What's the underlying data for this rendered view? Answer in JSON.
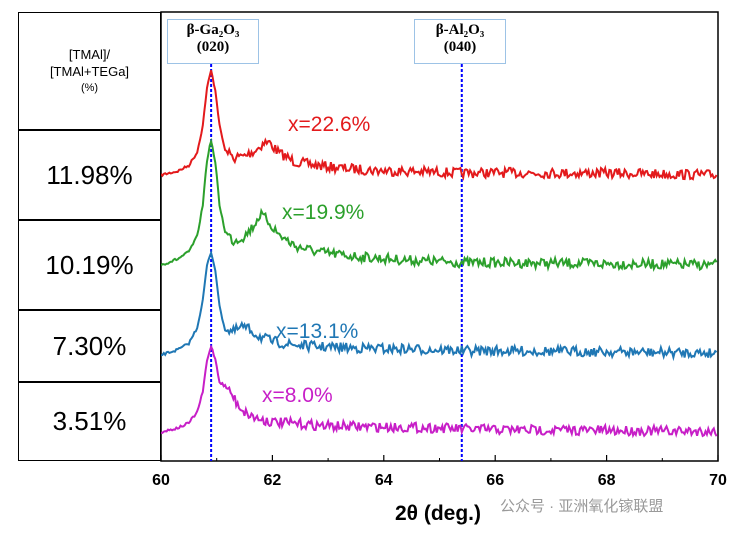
{
  "table": {
    "header": [
      "[TMAl]/",
      "[TMAl+TEGa]",
      "(%)"
    ],
    "rows": [
      "11.98%",
      "10.19%",
      "7.30%",
      "3.51%"
    ]
  },
  "peak_labels": [
    {
      "name": "β-Ga₂O₃",
      "hkl": "(020)",
      "x": 60.9
    },
    {
      "name": "β-Al₂O₃",
      "hkl": "(040)",
      "x": 65.4
    }
  ],
  "watermark_text": "公众号 · 亚洲氧化镓联盟",
  "chart_data": {
    "type": "line",
    "xlabel": "2θ (deg.)",
    "xlim": [
      60,
      70
    ],
    "xticks": [
      60,
      62,
      64,
      66,
      68,
      70
    ],
    "grid": false,
    "reference_lines": [
      60.9,
      65.4
    ],
    "series": [
      {
        "name": "x=22.6%",
        "color": "#e31a1c",
        "x": [
          60.0,
          60.3,
          60.5,
          60.65,
          60.75,
          60.82,
          60.9,
          60.98,
          61.05,
          61.15,
          61.3,
          61.5,
          61.7,
          61.85,
          61.95,
          62.1,
          62.4,
          62.8,
          63.3,
          63.8,
          64.3,
          65.0,
          65.4,
          66.0,
          67.0,
          68.0,
          69.0,
          70.0
        ],
        "y": [
          0.0,
          0.2,
          0.5,
          1.2,
          2.6,
          4.5,
          5.5,
          4.4,
          2.6,
          1.3,
          0.9,
          1.0,
          1.3,
          1.7,
          1.7,
          1.2,
          0.7,
          0.5,
          0.35,
          0.25,
          0.2,
          0.15,
          0.1,
          0.12,
          0.1,
          0.1,
          0.05,
          0.0
        ]
      },
      {
        "name": "x=19.9%",
        "color": "#2ca02c",
        "x": [
          60.0,
          60.3,
          60.5,
          60.65,
          60.75,
          60.82,
          60.9,
          60.98,
          61.05,
          61.15,
          61.3,
          61.5,
          61.65,
          61.78,
          61.9,
          62.1,
          62.4,
          62.8,
          63.3,
          63.8,
          64.3,
          65.0,
          65.4,
          66.0,
          67.0,
          68.0,
          69.0,
          70.0
        ],
        "y": [
          0.0,
          0.25,
          0.55,
          1.2,
          2.5,
          4.3,
          5.2,
          4.2,
          2.5,
          1.4,
          1.0,
          1.2,
          1.6,
          2.1,
          1.9,
          1.3,
          0.8,
          0.55,
          0.4,
          0.3,
          0.22,
          0.15,
          0.1,
          0.1,
          0.08,
          0.05,
          0.03,
          0.0
        ]
      },
      {
        "name": "x=13.1%",
        "color": "#1f77b4",
        "x": [
          60.0,
          60.3,
          60.5,
          60.65,
          60.75,
          60.82,
          60.9,
          60.98,
          61.05,
          61.15,
          61.3,
          61.45,
          61.6,
          61.75,
          62.0,
          62.3,
          62.8,
          63.3,
          64.0,
          65.0,
          65.4,
          66.0,
          67.0,
          68.0,
          69.0,
          70.0
        ],
        "y": [
          0.0,
          0.25,
          0.55,
          1.3,
          2.6,
          4.2,
          4.9,
          4.0,
          2.3,
          1.2,
          1.1,
          1.35,
          1.2,
          0.9,
          0.65,
          0.5,
          0.4,
          0.35,
          0.3,
          0.25,
          0.2,
          0.2,
          0.18,
          0.15,
          0.12,
          0.1
        ]
      },
      {
        "name": "x=8.0%",
        "color": "#c71fc7",
        "x": [
          60.0,
          60.3,
          60.5,
          60.65,
          60.75,
          60.82,
          60.9,
          60.98,
          61.05,
          61.15,
          61.25,
          61.35,
          61.5,
          61.7,
          62.0,
          62.5,
          63.0,
          64.0,
          65.0,
          65.4,
          66.0,
          67.0,
          68.0,
          69.0,
          70.0
        ],
        "y": [
          0.0,
          0.2,
          0.45,
          1.0,
          2.0,
          3.5,
          4.3,
          3.6,
          2.5,
          2.3,
          2.0,
          1.5,
          1.0,
          0.7,
          0.5,
          0.4,
          0.3,
          0.25,
          0.2,
          0.15,
          0.12,
          0.1,
          0.08,
          0.05,
          0.03
        ]
      }
    ]
  }
}
